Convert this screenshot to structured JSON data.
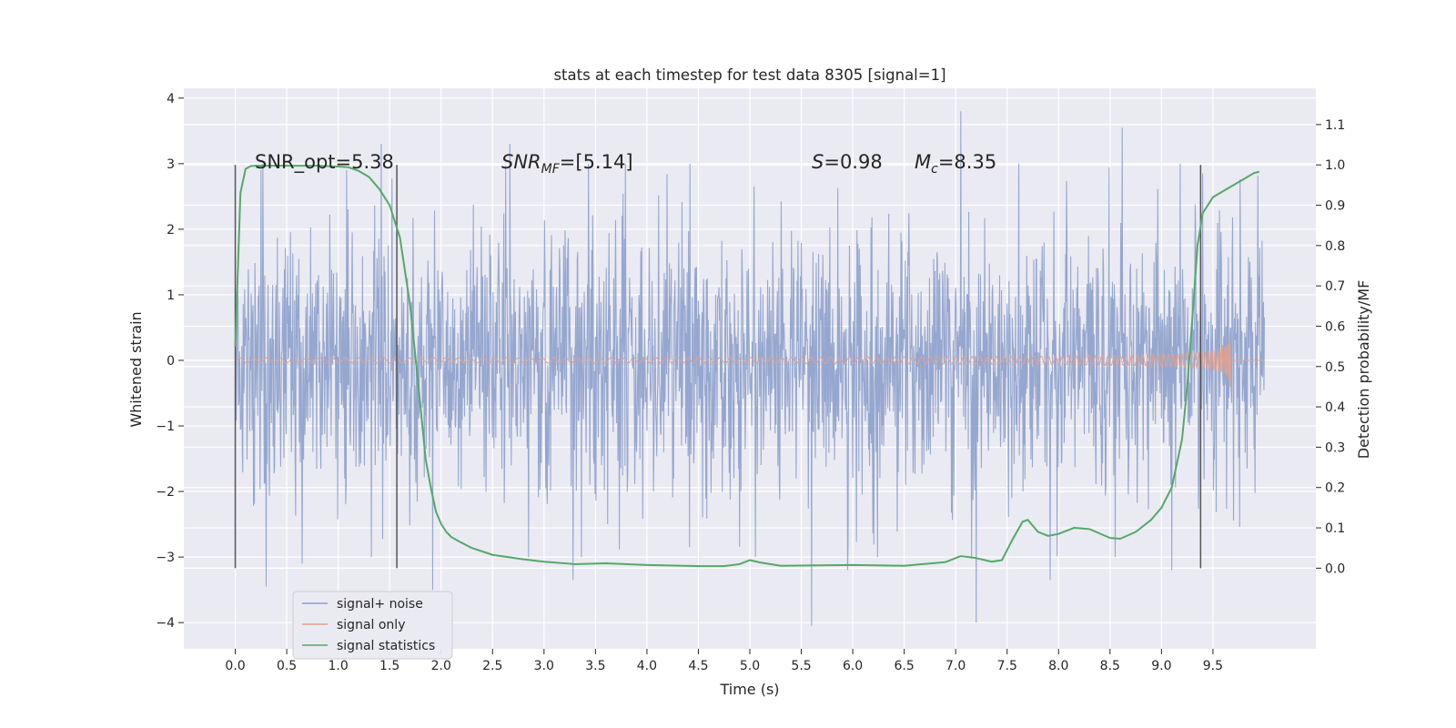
{
  "chart_data": {
    "type": "line",
    "title": "stats at each timestep for test data 8305 [signal=1]",
    "xlabel": "Time (s)",
    "ylabel": "Whitened strain",
    "y2label": "Detection probability/MF",
    "xlim": [
      -0.5,
      10.5
    ],
    "ylim": [
      -4.4,
      4.15
    ],
    "y2lim": [
      -0.2,
      1.19
    ],
    "x_ticks": [
      "0.0",
      "0.5",
      "1.0",
      "1.5",
      "2.0",
      "2.5",
      "3.0",
      "3.5",
      "4.0",
      "4.5",
      "5.0",
      "5.5",
      "6.0",
      "6.5",
      "7.0",
      "7.5",
      "8.0",
      "8.5",
      "9.0",
      "9.5"
    ],
    "y_ticks": [
      "4",
      "3",
      "2",
      "1",
      "0",
      "−1",
      "−2",
      "−3",
      "−4"
    ],
    "y2_ticks": [
      "1.1",
      "1.0",
      "0.9",
      "0.8",
      "0.7",
      "0.6",
      "0.5",
      "0.4",
      "0.3",
      "0.2",
      "0.1",
      "0.0"
    ],
    "grid": true,
    "legend_position": "lower-left",
    "annotations": {
      "snr_opt": "SNR_opt=5.38",
      "snr_mf": "=[5.14]",
      "s_value": "=0.98",
      "mc_value": "=8.35"
    },
    "vertical_markers": [
      0.0,
      1.57,
      9.38
    ],
    "series": [
      {
        "name": "signal+ noise",
        "color": "#8da0cb",
        "axis": "left",
        "kind": "noise",
        "x_range": [
          0.0,
          10.0
        ],
        "typical_envelope": [
          -1.7,
          1.6
        ],
        "peaks": [
          {
            "x": 0.25,
            "y": 2.9
          },
          {
            "x": 0.3,
            "y": -3.45
          },
          {
            "x": 0.65,
            "y": -3.1
          },
          {
            "x": 1.08,
            "y": 2.9
          },
          {
            "x": 1.42,
            "y": 3.3
          },
          {
            "x": 1.92,
            "y": -3.5
          },
          {
            "x": 2.67,
            "y": 3.3
          },
          {
            "x": 2.85,
            "y": -3.0
          },
          {
            "x": 3.28,
            "y": -3.35
          },
          {
            "x": 5.6,
            "y": -4.05
          },
          {
            "x": 5.95,
            "y": -3.2
          },
          {
            "x": 7.05,
            "y": 3.8
          },
          {
            "x": 7.2,
            "y": -4.0
          },
          {
            "x": 7.92,
            "y": -3.35
          },
          {
            "x": 8.62,
            "y": 3.55
          },
          {
            "x": 9.1,
            "y": -3.2
          },
          {
            "x": 9.4,
            "y": 2.85
          }
        ]
      },
      {
        "name": "signal only",
        "color": "#e8a08a",
        "axis": "left",
        "kind": "chirp",
        "x_range": [
          0.0,
          10.0
        ],
        "merger_time": 9.67,
        "peak_amplitude": 0.8
      },
      {
        "name": "signal statistics",
        "color": "#55a868",
        "axis": "right",
        "kind": "line",
        "x": [
          0.0,
          0.05,
          0.1,
          0.15,
          0.2,
          0.3,
          0.5,
          0.8,
          1.0,
          1.1,
          1.2,
          1.3,
          1.4,
          1.5,
          1.6,
          1.7,
          1.8,
          1.85,
          1.9,
          1.95,
          2.0,
          2.05,
          2.1,
          2.2,
          2.3,
          2.5,
          2.8,
          3.0,
          3.3,
          3.6,
          4.0,
          4.5,
          4.75,
          4.9,
          5.0,
          5.1,
          5.3,
          6.0,
          6.5,
          6.9,
          7.05,
          7.2,
          7.35,
          7.45,
          7.55,
          7.65,
          7.7,
          7.8,
          7.9,
          8.0,
          8.15,
          8.3,
          8.5,
          8.6,
          8.75,
          8.9,
          9.0,
          9.1,
          9.2,
          9.25,
          9.3,
          9.35,
          9.4,
          9.5,
          9.6,
          9.7,
          9.8,
          9.9,
          9.95
        ],
        "values": [
          0.55,
          0.93,
          0.99,
          0.997,
          0.998,
          0.998,
          0.998,
          0.998,
          0.996,
          0.994,
          0.985,
          0.97,
          0.94,
          0.9,
          0.82,
          0.65,
          0.4,
          0.27,
          0.2,
          0.14,
          0.11,
          0.09,
          0.077,
          0.063,
          0.05,
          0.033,
          0.022,
          0.016,
          0.01,
          0.012,
          0.008,
          0.005,
          0.005,
          0.01,
          0.02,
          0.014,
          0.006,
          0.008,
          0.006,
          0.015,
          0.03,
          0.025,
          0.016,
          0.02,
          0.07,
          0.115,
          0.12,
          0.09,
          0.08,
          0.085,
          0.1,
          0.097,
          0.075,
          0.073,
          0.09,
          0.12,
          0.15,
          0.2,
          0.32,
          0.45,
          0.62,
          0.8,
          0.88,
          0.92,
          0.935,
          0.95,
          0.965,
          0.98,
          0.983
        ]
      }
    ]
  }
}
